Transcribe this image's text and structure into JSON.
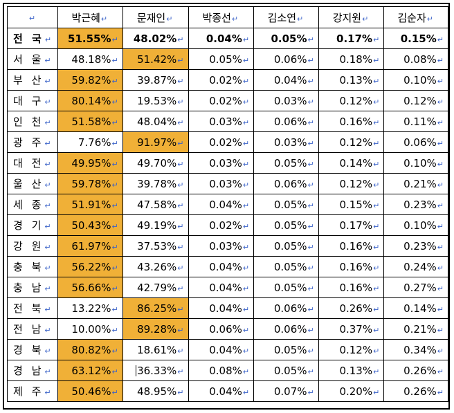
{
  "table": {
    "headers": [
      "",
      "박근혜",
      "문재인",
      "박종선",
      "김소연",
      "강지원",
      "김순자"
    ],
    "paragraph_mark": "↵",
    "highlight_color": "#f0b037",
    "rows": [
      {
        "region": "전 국",
        "values": [
          "51.55%",
          "48.02%",
          "0.04%",
          "0.05%",
          "0.17%",
          "0.15%"
        ],
        "highlight": [
          0
        ]
      },
      {
        "region": "서 울",
        "values": [
          "48.18%",
          "51.42%",
          "0.05%",
          "0.06%",
          "0.18%",
          "0.08%"
        ],
        "highlight": [
          1
        ]
      },
      {
        "region": "부 산",
        "values": [
          "59.82%",
          "39.87%",
          "0.02%",
          "0.04%",
          "0.13%",
          "0.10%"
        ],
        "highlight": [
          0
        ]
      },
      {
        "region": "대 구",
        "values": [
          "80.14%",
          "19.53%",
          "0.02%",
          "0.03%",
          "0.12%",
          "0.12%"
        ],
        "highlight": [
          0
        ]
      },
      {
        "region": "인 천",
        "values": [
          "51.58%",
          "48.04%",
          "0.03%",
          "0.06%",
          "0.16%",
          "0.11%"
        ],
        "highlight": [
          0
        ]
      },
      {
        "region": "광 주",
        "values": [
          "7.76%",
          "91.97%",
          "0.02%",
          "0.03%",
          "0.12%",
          "0.06%"
        ],
        "highlight": [
          1
        ]
      },
      {
        "region": "대 전",
        "values": [
          "49.95%",
          "49.70%",
          "0.03%",
          "0.05%",
          "0.14%",
          "0.10%"
        ],
        "highlight": [
          0
        ]
      },
      {
        "region": "울 산",
        "values": [
          "59.78%",
          "39.78%",
          "0.03%",
          "0.06%",
          "0.12%",
          "0.21%"
        ],
        "highlight": [
          0
        ]
      },
      {
        "region": "세 종",
        "values": [
          "51.91%",
          "47.58%",
          "0.04%",
          "0.05%",
          "0.15%",
          "0.23%"
        ],
        "highlight": [
          0
        ]
      },
      {
        "region": "경 기",
        "values": [
          "50.43%",
          "49.19%",
          "0.02%",
          "0.05%",
          "0.17%",
          "0.10%"
        ],
        "highlight": [
          0
        ]
      },
      {
        "region": "강 원",
        "values": [
          "61.97%",
          "37.53%",
          "0.03%",
          "0.05%",
          "0.16%",
          "0.23%"
        ],
        "highlight": [
          0
        ]
      },
      {
        "region": "충 북",
        "values": [
          "56.22%",
          "43.26%",
          "0.04%",
          "0.05%",
          "0.16%",
          "0.24%"
        ],
        "highlight": [
          0
        ]
      },
      {
        "region": "충 남",
        "values": [
          "56.66%",
          "42.79%",
          "0.04%",
          "0.05%",
          "0.16%",
          "0.27%"
        ],
        "highlight": [
          0
        ]
      },
      {
        "region": "전 북",
        "values": [
          "13.22%",
          "86.25%",
          "0.04%",
          "0.06%",
          "0.26%",
          "0.14%"
        ],
        "highlight": [
          1
        ]
      },
      {
        "region": "전 남",
        "values": [
          "10.00%",
          "89.28%",
          "0.06%",
          "0.06%",
          "0.37%",
          "0.21%"
        ],
        "highlight": [
          1
        ]
      },
      {
        "region": "경 북",
        "values": [
          "80.82%",
          "18.61%",
          "0.04%",
          "0.05%",
          "0.12%",
          "0.34%"
        ],
        "highlight": [
          0
        ]
      },
      {
        "region": "경 남",
        "values": [
          "63.12%",
          "36.33%",
          "0.08%",
          "0.05%",
          "0.13%",
          "0.26%"
        ],
        "highlight": [
          0
        ]
      },
      {
        "region": "제 주",
        "values": [
          "50.46%",
          "48.95%",
          "0.04%",
          "0.07%",
          "0.20%",
          "0.26%"
        ],
        "highlight": [
          0
        ]
      }
    ]
  }
}
